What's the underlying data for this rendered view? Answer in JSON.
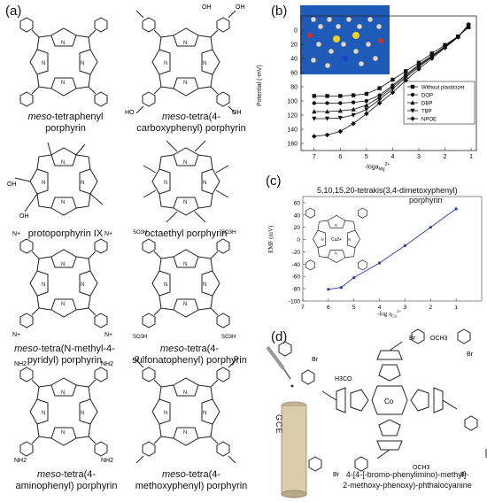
{
  "panels": {
    "a": {
      "label": "(a)",
      "molecules": [
        {
          "name_prefix": "meso",
          "name_rest": "-tetraphenyl",
          "line2": "porphyrin"
        },
        {
          "name_prefix": "meso",
          "name_rest": "-tetra(4-",
          "line2": "carboxyphenyl) porphyrin"
        },
        {
          "name_prefix": "",
          "name_rest": "protoporphyrin IX",
          "line2": ""
        },
        {
          "name_prefix": "",
          "name_rest": "octaethyl porphyrin",
          "line2": ""
        },
        {
          "name_prefix": "meso",
          "name_rest": "-tetra(N-methyl-4-",
          "line2": "pyridyl) porphyrin"
        },
        {
          "name_prefix": "meso",
          "name_rest": "-tetra(4-",
          "line2": "sulfonatophenyl) porphyrin"
        },
        {
          "name_prefix": "meso",
          "name_rest": "-tetra(4-",
          "line2": "aminophenyl) porphyrin"
        },
        {
          "name_prefix": "meso",
          "name_rest": "-tetra(4-",
          "line2": "methoxyphenyl) porphyrin"
        }
      ],
      "substituent_labels": {
        "oh": "OH",
        "o": "O",
        "ho": "HO",
        "nh2": "NH2",
        "so3h": "SO3H",
        "n_plus": "N+",
        "o_me": "O"
      }
    },
    "b": {
      "label": "(b)",
      "chart_data": {
        "type": "line",
        "ylabel": "Potential (-mV)",
        "xlabel_main": "-loga",
        "xlabel_sub": "Mg",
        "xlabel_sup": "2+",
        "xlim": [
          7.5,
          0.8
        ],
        "ylim": [
          170,
          -20
        ],
        "x_ticks": [
          "7",
          "6",
          "5",
          "4",
          "3",
          "2",
          "1"
        ],
        "y_ticks": [
          "0",
          "20",
          "40",
          "60",
          "80",
          "100",
          "120",
          "140",
          "160"
        ],
        "series": [
          {
            "name": "Without plasticizer",
            "marker": "square",
            "x": [
              7,
              6.5,
              6,
              5.5,
              5,
              4.5,
              4,
              3.5,
              3,
              2.5,
              2,
              1.5,
              1.1
            ],
            "y": [
              93,
              93,
              93,
              92,
              90,
              82,
              70,
              58,
              46,
              33,
              21,
              9,
              -4
            ]
          },
          {
            "name": "DOP",
            "marker": "circle",
            "x": [
              7,
              6.5,
              6,
              5.5,
              5,
              4.5,
              4,
              3.5,
              3,
              2.5,
              2,
              1.5,
              1.1
            ],
            "y": [
              103,
              103,
              103,
              102,
              100,
              92,
              78,
              63,
              49,
              36,
              23,
              9,
              -6
            ]
          },
          {
            "name": "DBP",
            "marker": "triangle-up",
            "x": [
              7,
              6.5,
              6,
              5.5,
              5,
              4.5,
              4,
              3.5,
              3,
              2.5,
              2,
              1.5,
              1.1
            ],
            "y": [
              115,
              115,
              114,
              112,
              106,
              95,
              80,
              65,
              50,
              37,
              23,
              9,
              -6
            ]
          },
          {
            "name": "TBP",
            "marker": "triangle-down",
            "x": [
              7,
              6.5,
              6,
              5.5,
              5,
              4.5,
              4,
              3.5,
              3,
              2.5,
              2,
              1.5,
              1.1
            ],
            "y": [
              125,
              125,
              124,
              120,
              112,
              98,
              83,
              67,
              52,
              38,
              24,
              10,
              -7
            ]
          },
          {
            "name": "NPOE",
            "marker": "diamond",
            "x": [
              7,
              6.5,
              6,
              5.5,
              5,
              4.5,
              4,
              3.5,
              3,
              2.5,
              2,
              1.5,
              1.1
            ],
            "y": [
              150,
              148,
              143,
              132,
              118,
              103,
              88,
              71,
              55,
              40,
              25,
              10,
              -8
            ]
          }
        ]
      }
    },
    "c": {
      "label": "(c)",
      "title_line1": "5,10,15,20-tetrakis(3,4-dimetoxyphenyl)",
      "title_line2": "porphyrin",
      "metal_label": "Cu2+",
      "chart_data": {
        "type": "line",
        "ylabel": "EMF (mV)",
        "xlabel_main": "-log a",
        "xlabel_sub": "Cu",
        "xlabel_sup": "2+",
        "xlim": [
          7,
          0
        ],
        "ylim": [
          -100,
          70
        ],
        "x_ticks": [
          "7",
          "6",
          "5",
          "4",
          "3",
          "2",
          "1"
        ],
        "y_ticks": [
          "60",
          "40",
          "20",
          "0",
          "-20",
          "-40",
          "-60",
          "-80",
          "-100"
        ],
        "series": [
          {
            "x": [
              6.0,
              5.5,
              5.0,
              4.0,
              3.0,
              2.0,
              1.0
            ],
            "y": [
              -81,
              -78,
              -62,
              -38,
              -10,
              20,
              50
            ]
          }
        ]
      }
    },
    "d": {
      "label": "(d)",
      "electrode_label": "GCE",
      "caption_line1": "4-[4-[-bromo-phenylimino)-methyl]-",
      "caption_line2": "2-methoxy-phenoxy)-phthalocyanine",
      "atom_labels": {
        "br": "Br",
        "och3": "OCH3",
        "h3co": "H3CO",
        "co": "Co",
        "n": "N",
        "o": "O"
      }
    }
  },
  "colors": {
    "inset_blue": "#1e5bb8",
    "line_c": "#2a3aa0",
    "ink": "#111111"
  }
}
